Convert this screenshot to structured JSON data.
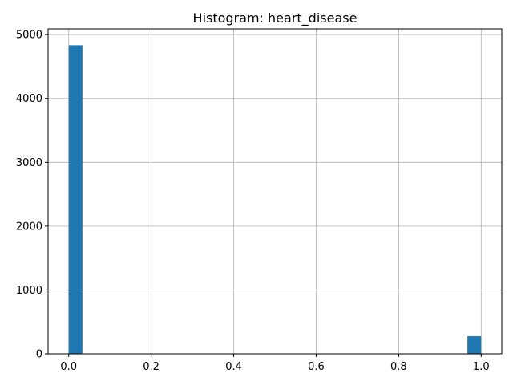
{
  "chart_data": {
    "type": "bar",
    "title": "Histogram: heart_disease",
    "xlabel": "",
    "ylabel": "",
    "xlim": [
      -0.05,
      1.05
    ],
    "ylim": [
      0,
      5090
    ],
    "xticks": [
      0.0,
      0.2,
      0.4,
      0.6,
      0.8,
      1.0
    ],
    "xtick_labels": [
      "0.0",
      "0.2",
      "0.4",
      "0.6",
      "0.8",
      "1.0"
    ],
    "yticks": [
      0,
      1000,
      2000,
      3000,
      4000,
      5000
    ],
    "ytick_labels": [
      "0",
      "1000",
      "2000",
      "3000",
      "4000",
      "5000"
    ],
    "grid": true,
    "bar_color": "#1f77b4",
    "bins": [
      {
        "x0": 0.0,
        "x1": 0.0333,
        "count": 4834
      },
      {
        "x0": 0.9667,
        "x1": 1.0,
        "count": 276
      }
    ]
  }
}
